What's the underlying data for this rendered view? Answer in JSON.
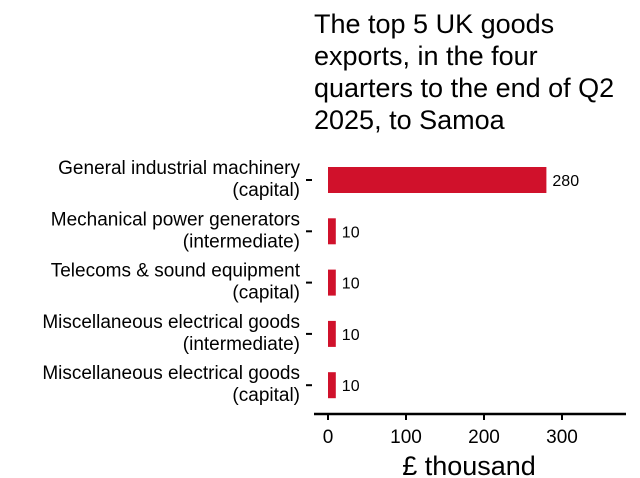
{
  "chart_data": {
    "type": "bar",
    "orientation": "horizontal",
    "title_lines": [
      "The top 5 UK goods",
      "exports, in the four",
      "quarters to the end of Q2",
      "2025, to Samoa"
    ],
    "categories": [
      [
        "General industrial machinery",
        "(capital)"
      ],
      [
        "Mechanical power generators",
        "(intermediate)"
      ],
      [
        "Telecoms & sound equipment",
        "(capital)"
      ],
      [
        "Miscellaneous electrical goods",
        "(intermediate)"
      ],
      [
        "Miscellaneous electrical goods",
        "(capital)"
      ]
    ],
    "values": [
      280,
      10,
      10,
      10,
      10
    ],
    "value_labels": [
      "280",
      "10",
      "10",
      "10",
      "10"
    ],
    "xlabel": "£ thousand",
    "ylabel": "",
    "xlim": [
      -17,
      380
    ],
    "xticks": [
      0,
      100,
      200,
      300
    ],
    "xtick_labels": [
      "0",
      "100",
      "200",
      "300"
    ],
    "bar_color": "#d0112b",
    "grid": false,
    "legend": "none"
  }
}
